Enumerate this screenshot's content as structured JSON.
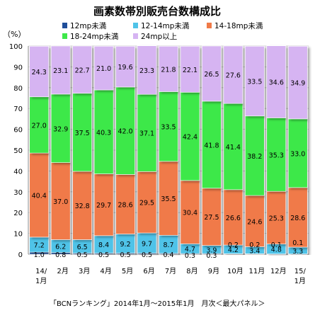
{
  "chart_data": {
    "type": "bar",
    "stacked": true,
    "title": "画素数帯別販売台数構成比",
    "ylabel": "（%）",
    "ylim": [
      0,
      100
    ],
    "yticks": [
      0,
      10,
      20,
      30,
      40,
      50,
      60,
      70,
      80,
      90,
      100
    ],
    "grid": true,
    "legend_placement": "top",
    "categories": [
      [
        "14/",
        "1月"
      ],
      [
        "2月"
      ],
      [
        "3月"
      ],
      [
        "4月"
      ],
      [
        "5月"
      ],
      [
        "6月"
      ],
      [
        "7月"
      ],
      [
        "8月"
      ],
      [
        "9月"
      ],
      [
        "10月"
      ],
      [
        "11月"
      ],
      [
        "12月"
      ],
      [
        "15/",
        "1月"
      ]
    ],
    "series": [
      {
        "name": "12mp未満",
        "color": "#1f4e9a",
        "values": [
          1.0,
          0.8,
          0.5,
          0.5,
          0.5,
          0.5,
          0.4,
          0.3,
          0.3,
          0.2,
          0.2,
          0.1,
          0.1
        ]
      },
      {
        "name": "12-14mp未満",
        "color": "#4fc3e8",
        "values": [
          7.2,
          6.2,
          6.5,
          8.4,
          9.2,
          9.7,
          8.7,
          4.7,
          3.9,
          4.2,
          3.4,
          4.8,
          3.3
        ]
      },
      {
        "name": "14-18mp未満",
        "color": "#f07a48",
        "values": [
          40.4,
          37.0,
          32.8,
          29.7,
          28.6,
          29.5,
          35.5,
          30.4,
          27.5,
          26.6,
          24.6,
          25.3,
          28.6
        ]
      },
      {
        "name": "18-24mp未満",
        "color": "#3ee84a",
        "values": [
          27.0,
          32.9,
          37.5,
          40.3,
          42.0,
          37.1,
          33.5,
          42.4,
          41.8,
          41.4,
          38.2,
          35.3,
          33.0
        ]
      },
      {
        "name": "24mp以上",
        "color": "#d6b4f2",
        "values": [
          24.3,
          23.1,
          22.7,
          21.0,
          19.6,
          23.3,
          21.8,
          22.1,
          26.5,
          27.6,
          33.5,
          34.6,
          34.9
        ]
      }
    ],
    "source": "「BCNランキング」2014年1月～2015年1月　月次＜最大パネル＞"
  }
}
